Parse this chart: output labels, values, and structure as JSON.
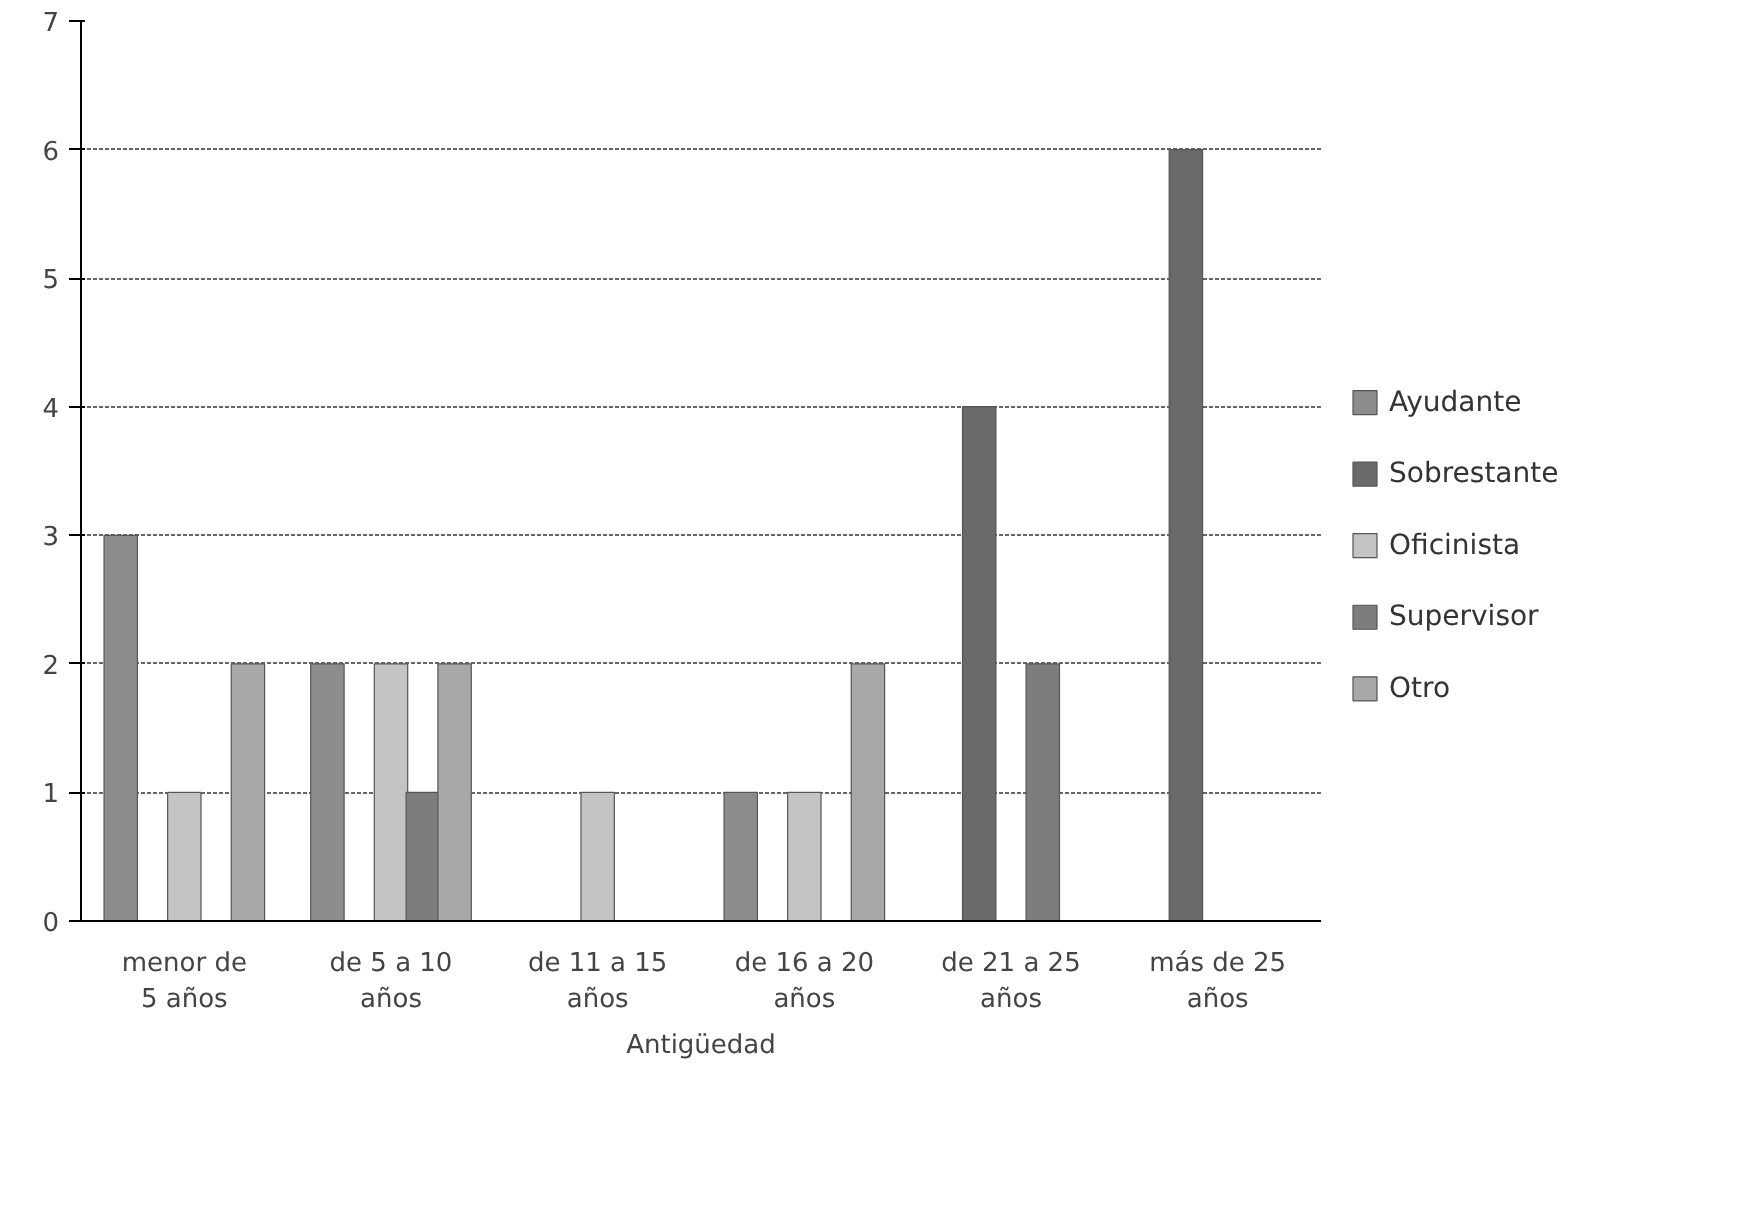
{
  "chart_data": {
    "type": "bar",
    "xlabel": "Antigüedad",
    "categories": [
      "menor de\n5 años",
      "de 5 a 10\naños",
      "de 11 a 15\naños",
      "de 16 a 20\naños",
      "de 21 a 25\naños",
      "más de 25\naños"
    ],
    "series": [
      {
        "name": "Ayudante",
        "color": "#8c8c8c",
        "values": [
          3,
          2,
          null,
          1,
          null,
          null
        ]
      },
      {
        "name": "Sobrestante",
        "color": "#6a6a6a",
        "values": [
          null,
          null,
          null,
          null,
          4,
          6
        ]
      },
      {
        "name": "Oficinista",
        "color": "#c4c4c4",
        "values": [
          1,
          2,
          1,
          1,
          null,
          null
        ]
      },
      {
        "name": "Supervisor",
        "color": "#7d7d7d",
        "values": [
          null,
          1,
          null,
          null,
          2,
          null
        ]
      },
      {
        "name": "Otro",
        "color": "#a8a8a8",
        "values": [
          2,
          2,
          null,
          2,
          null,
          null
        ]
      }
    ],
    "ylim": [
      0,
      7
    ],
    "yticks": [
      0,
      1,
      2,
      3,
      4,
      5,
      6,
      7
    ],
    "grid": "y",
    "legend": "right"
  }
}
